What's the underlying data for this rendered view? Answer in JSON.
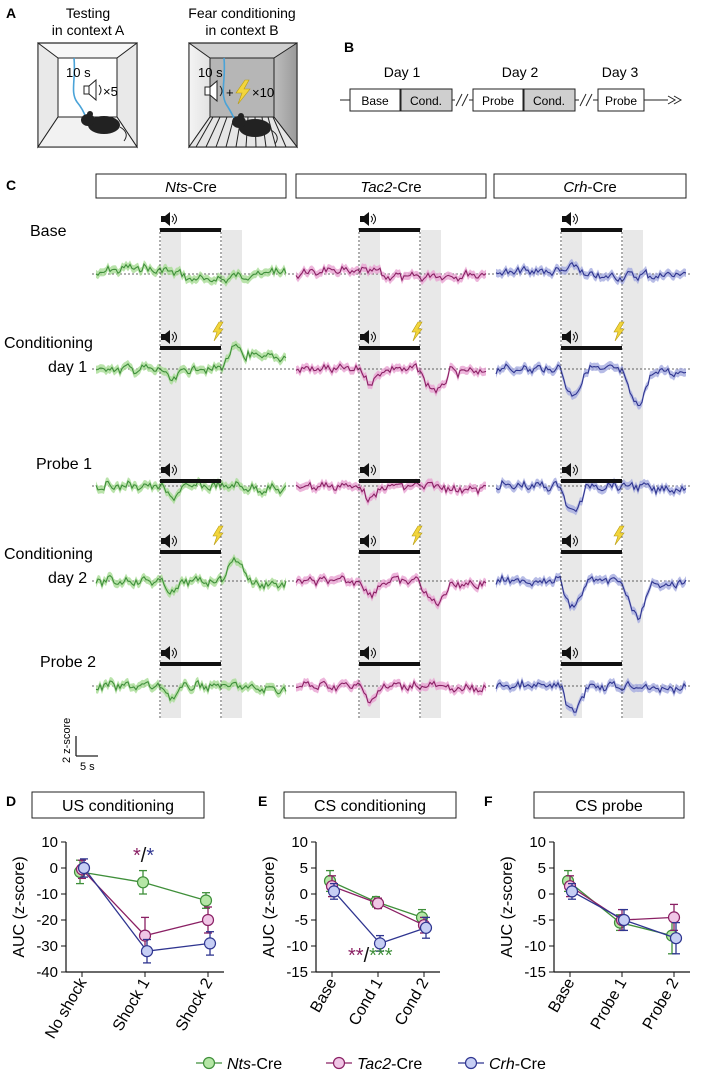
{
  "panels": {
    "a": {
      "letter": "A",
      "testing_title": [
        "Testing",
        "in context A"
      ],
      "fc_title": [
        "Fear conditioning",
        "in context B"
      ],
      "testing_time": "10 s",
      "testing_reps": "×5",
      "fc_time": "10 s",
      "fc_plus": "+",
      "fc_reps": "×10"
    },
    "b": {
      "letter": "B",
      "days": [
        "Day 1",
        "Day 2",
        "Day 3"
      ],
      "boxes": [
        "Base",
        "Cond.",
        "Probe",
        "Cond.",
        "Probe"
      ]
    },
    "c": {
      "letter": "C",
      "lines": [
        {
          "name": "Nts",
          "suffix": "-Cre"
        },
        {
          "name": "Tac2",
          "suffix": "-Cre"
        },
        {
          "name": "Crh",
          "suffix": "-Cre"
        }
      ],
      "rows": [
        [
          "Base"
        ],
        [
          "Conditioning",
          "day 1"
        ],
        [
          "Probe 1"
        ],
        [
          "Conditioning",
          "day 2"
        ],
        [
          "Probe 2"
        ]
      ],
      "scale_y": "2 z-score",
      "scale_x": "5 s"
    },
    "d": {
      "letter": "D",
      "title": "US conditioning"
    },
    "e": {
      "letter": "E",
      "title": "CS conditioning"
    },
    "f": {
      "letter": "F",
      "title": "CS probe"
    }
  },
  "colors": {
    "nts": "#3f8f3a",
    "nts_fill": "#a8dc95",
    "tac2": "#8a2064",
    "tac2_fill": "#e8a3d2",
    "crh": "#2f3590",
    "crh_fill": "#a5abe0",
    "nts_marker": "#b5e6a6",
    "tac2_marker": "#f0c6e6",
    "crh_marker": "#c6cef4"
  },
  "legend": [
    {
      "name": "Nts",
      "suffix": "-Cre"
    },
    {
      "name": "Tac2",
      "suffix": "-Cre"
    },
    {
      "name": "Crh",
      "suffix": "-Cre"
    }
  ],
  "chart_data": [
    {
      "type": "line",
      "panel": "D",
      "title": "US conditioning",
      "xlabel": "",
      "ylabel": "AUC (z-score)",
      "categories": [
        "No shock",
        "Shock 1",
        "Shock 2"
      ],
      "ylim": [
        -40,
        10
      ],
      "yticks": [
        10,
        0,
        -10,
        -20,
        -30,
        -40
      ],
      "series": [
        {
          "name": "Nts-Cre",
          "values": [
            -1.5,
            -5.5,
            -12.5
          ],
          "errors": [
            4.5,
            4.5,
            3.0
          ]
        },
        {
          "name": "Tac2-Cre",
          "values": [
            -0.5,
            -26,
            -20
          ],
          "errors": [
            3.5,
            7.0,
            5.0
          ]
        },
        {
          "name": "Crh-Cre",
          "values": [
            0.0,
            -32,
            -29
          ],
          "errors": [
            3.5,
            4.5,
            4.5
          ]
        }
      ],
      "annotations": [
        "*",
        "/",
        "*"
      ]
    },
    {
      "type": "line",
      "panel": "E",
      "title": "CS conditioning",
      "xlabel": "",
      "ylabel": "AUC (z-score)",
      "categories": [
        "Base",
        "Cond 1",
        "Cond 2"
      ],
      "ylim": [
        -15,
        10
      ],
      "yticks": [
        10,
        5,
        0,
        -5,
        -10,
        -15
      ],
      "series": [
        {
          "name": "Nts-Cre",
          "values": [
            2.5,
            -1.5,
            -4.5
          ],
          "errors": [
            2.0,
            1.0,
            1.5
          ]
        },
        {
          "name": "Tac2-Cre",
          "values": [
            1.5,
            -1.8,
            -6.0
          ],
          "errors": [
            2.0,
            1.0,
            1.5
          ]
        },
        {
          "name": "Crh-Cre",
          "values": [
            0.5,
            -9.5,
            -6.5
          ],
          "errors": [
            1.5,
            1.5,
            2.0
          ]
        }
      ],
      "annotations": [
        "**",
        "/",
        "***"
      ]
    },
    {
      "type": "line",
      "panel": "F",
      "title": "CS probe",
      "xlabel": "",
      "ylabel": "AUC (z-score)",
      "categories": [
        "Base",
        "Probe 1",
        "Probe 2"
      ],
      "ylim": [
        -15,
        10
      ],
      "yticks": [
        10,
        5,
        0,
        -5,
        -10,
        -15
      ],
      "series": [
        {
          "name": "Nts-Cre",
          "values": [
            2.5,
            -5.5,
            -8.0
          ],
          "errors": [
            2.0,
            1.5,
            3.5
          ]
        },
        {
          "name": "Tac2-Cre",
          "values": [
            1.5,
            -5.0,
            -4.5
          ],
          "errors": [
            2.0,
            2.0,
            2.5
          ]
        },
        {
          "name": "Crh-Cre",
          "values": [
            0.5,
            -5.0,
            -8.5
          ],
          "errors": [
            1.5,
            2.0,
            3.0
          ]
        }
      ],
      "annotations": []
    }
  ]
}
